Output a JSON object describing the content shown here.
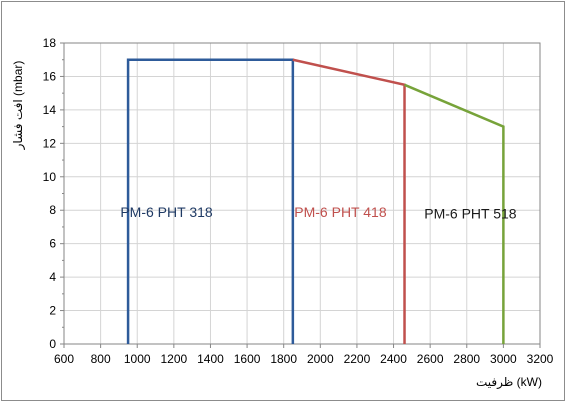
{
  "chart_data": {
    "type": "line",
    "title": "",
    "xlabel": "ظرفیت (kW)",
    "ylabel": "افت فشار (mbar)",
    "xlim": [
      600,
      3200
    ],
    "ylim": [
      0,
      18
    ],
    "x_ticks": [
      "600",
      "800",
      "1000",
      "1200",
      "1400",
      "1600",
      "1800",
      "2000",
      "2200",
      "2400",
      "2600",
      "2800",
      "3000",
      "3200"
    ],
    "y_ticks": [
      "0",
      "2",
      "4",
      "6",
      "8",
      "10",
      "12",
      "14",
      "16",
      "18"
    ],
    "grid": true,
    "legend": "none",
    "series": [
      {
        "name": "PM-6 PHT 318",
        "color": "#2e5b9a",
        "x": [
          950,
          950,
          1850,
          1850
        ],
        "y": [
          0,
          17,
          17,
          0
        ]
      },
      {
        "name": "PM-6 PHT 418",
        "color": "#c0504d",
        "x": [
          1850,
          2460,
          2460
        ],
        "y": [
          17,
          15.5,
          0
        ]
      },
      {
        "name": "PM-6 PHT 518",
        "color": "#77a33a",
        "x": [
          2460,
          3000,
          3000
        ],
        "y": [
          15.5,
          13,
          0
        ]
      }
    ],
    "annotations": [
      {
        "text": "PM-6 PHT 318",
        "x": 1160,
        "y": 7.6,
        "color": "#1f3a64"
      },
      {
        "text": "PM-6 PHT 418",
        "x": 2110,
        "y": 7.6,
        "color": "#c0504d"
      },
      {
        "text": "PM-6 PHT 518",
        "x": 2820,
        "y": 7.5,
        "color": "#1a1a1a"
      }
    ]
  }
}
